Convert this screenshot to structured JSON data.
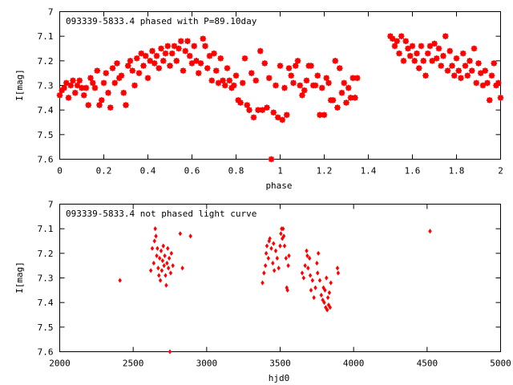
{
  "chart_data": [
    {
      "type": "scatter",
      "title": "093339-5833.4 phased with P=89.10day",
      "xlabel": "phase",
      "ylabel": "I[mag]",
      "xlim": [
        0,
        2
      ],
      "ylim": [
        7,
        7.6
      ],
      "y_inverted": true,
      "x_ticks": [
        0,
        0.2,
        0.4,
        0.6,
        0.8,
        1,
        1.2,
        1.4,
        1.6,
        1.8,
        2
      ],
      "x_tick_labels": [
        "0",
        "0.2",
        "0.4",
        "0.6",
        "0.8",
        "1",
        "1.2",
        "1.4",
        "1.6",
        "1.8",
        "2"
      ],
      "y_ticks": [
        7,
        7.1,
        7.2,
        7.3,
        7.4,
        7.5,
        7.6
      ],
      "y_tick_labels": [
        "7",
        "7.1",
        "7.2",
        "7.3",
        "7.4",
        "7.5",
        "7.6"
      ],
      "marker_color": "#ff0000",
      "grid": false,
      "points": [
        [
          0.0,
          7.34
        ],
        [
          0.01,
          7.32
        ],
        [
          0.02,
          7.31
        ],
        [
          0.03,
          7.29
        ],
        [
          0.04,
          7.35
        ],
        [
          0.05,
          7.3
        ],
        [
          0.06,
          7.28
        ],
        [
          0.07,
          7.33
        ],
        [
          0.08,
          7.3
        ],
        [
          0.09,
          7.28
        ],
        [
          0.1,
          7.31
        ],
        [
          0.11,
          7.34
        ],
        [
          0.12,
          7.31
        ],
        [
          0.13,
          7.38
        ],
        [
          0.14,
          7.27
        ],
        [
          0.15,
          7.29
        ],
        [
          0.16,
          7.31
        ],
        [
          0.17,
          7.24
        ],
        [
          0.18,
          7.38
        ],
        [
          0.19,
          7.36
        ],
        [
          0.2,
          7.29
        ],
        [
          0.21,
          7.25
        ],
        [
          0.22,
          7.33
        ],
        [
          0.23,
          7.39
        ],
        [
          0.24,
          7.23
        ],
        [
          0.25,
          7.29
        ],
        [
          0.26,
          7.21
        ],
        [
          0.27,
          7.27
        ],
        [
          0.28,
          7.26
        ],
        [
          0.29,
          7.33
        ],
        [
          0.3,
          7.38
        ],
        [
          0.31,
          7.22
        ],
        [
          0.32,
          7.2
        ],
        [
          0.33,
          7.24
        ],
        [
          0.34,
          7.3
        ],
        [
          0.35,
          7.19
        ],
        [
          0.36,
          7.25
        ],
        [
          0.37,
          7.17
        ],
        [
          0.38,
          7.22
        ],
        [
          0.39,
          7.18
        ],
        [
          0.4,
          7.27
        ],
        [
          0.41,
          7.2
        ],
        [
          0.42,
          7.16
        ],
        [
          0.43,
          7.21
        ],
        [
          0.44,
          7.18
        ],
        [
          0.45,
          7.23
        ],
        [
          0.46,
          7.15
        ],
        [
          0.47,
          7.2
        ],
        [
          0.48,
          7.17
        ],
        [
          0.49,
          7.14
        ],
        [
          0.5,
          7.22
        ],
        [
          0.51,
          7.17
        ],
        [
          0.52,
          7.14
        ],
        [
          0.53,
          7.2
        ],
        [
          0.54,
          7.15
        ],
        [
          0.55,
          7.12
        ],
        [
          0.56,
          7.24
        ],
        [
          0.57,
          7.16
        ],
        [
          0.58,
          7.12
        ],
        [
          0.59,
          7.18
        ],
        [
          0.6,
          7.21
        ],
        [
          0.61,
          7.14
        ],
        [
          0.62,
          7.2
        ],
        [
          0.63,
          7.25
        ],
        [
          0.64,
          7.21
        ],
        [
          0.65,
          7.11
        ],
        [
          0.66,
          7.14
        ],
        [
          0.67,
          7.23
        ],
        [
          0.68,
          7.18
        ],
        [
          0.69,
          7.28
        ],
        [
          0.7,
          7.17
        ],
        [
          0.71,
          7.24
        ],
        [
          0.72,
          7.29
        ],
        [
          0.73,
          7.19
        ],
        [
          0.74,
          7.28
        ],
        [
          0.75,
          7.3
        ],
        [
          0.76,
          7.23
        ],
        [
          0.77,
          7.28
        ],
        [
          0.78,
          7.31
        ],
        [
          0.79,
          7.3
        ],
        [
          0.8,
          7.26
        ],
        [
          0.81,
          7.36
        ],
        [
          0.82,
          7.37
        ],
        [
          0.83,
          7.29
        ],
        [
          0.84,
          7.19
        ],
        [
          0.85,
          7.38
        ],
        [
          0.86,
          7.4
        ],
        [
          0.87,
          7.25
        ],
        [
          0.88,
          7.43
        ],
        [
          0.89,
          7.28
        ],
        [
          0.9,
          7.4
        ],
        [
          0.91,
          7.16
        ],
        [
          0.92,
          7.4
        ],
        [
          0.93,
          7.21
        ],
        [
          0.94,
          7.39
        ],
        [
          0.95,
          7.27
        ],
        [
          0.96,
          7.6
        ],
        [
          0.97,
          7.41
        ],
        [
          0.98,
          7.3
        ],
        [
          0.99,
          7.43
        ],
        [
          1.0,
          7.22
        ],
        [
          1.01,
          7.44
        ],
        [
          1.02,
          7.31
        ],
        [
          1.03,
          7.42
        ],
        [
          1.04,
          7.23
        ],
        [
          1.05,
          7.26
        ],
        [
          1.06,
          7.29
        ],
        [
          1.07,
          7.22
        ],
        [
          1.08,
          7.2
        ],
        [
          1.09,
          7.3
        ],
        [
          1.1,
          7.34
        ],
        [
          1.11,
          7.32
        ],
        [
          1.12,
          7.28
        ],
        [
          1.13,
          7.22
        ],
        [
          1.14,
          7.22
        ],
        [
          1.15,
          7.3
        ],
        [
          1.16,
          7.3
        ],
        [
          1.17,
          7.26
        ],
        [
          1.18,
          7.42
        ],
        [
          1.19,
          7.31
        ],
        [
          1.2,
          7.42
        ],
        [
          1.21,
          7.27
        ],
        [
          1.22,
          7.29
        ],
        [
          1.23,
          7.36
        ],
        [
          1.24,
          7.36
        ],
        [
          1.25,
          7.2
        ],
        [
          1.26,
          7.39
        ],
        [
          1.27,
          7.23
        ],
        [
          1.28,
          7.33
        ],
        [
          1.29,
          7.29
        ],
        [
          1.3,
          7.37
        ],
        [
          1.31,
          7.31
        ],
        [
          1.32,
          7.35
        ],
        [
          1.33,
          7.27
        ],
        [
          1.34,
          7.35
        ],
        [
          1.35,
          7.27
        ],
        [
          1.5,
          7.1
        ],
        [
          1.51,
          7.11
        ],
        [
          1.52,
          7.14
        ],
        [
          1.53,
          7.12
        ],
        [
          1.54,
          7.17
        ],
        [
          1.55,
          7.1
        ],
        [
          1.56,
          7.2
        ],
        [
          1.57,
          7.12
        ],
        [
          1.58,
          7.15
        ],
        [
          1.59,
          7.18
        ],
        [
          1.6,
          7.14
        ],
        [
          1.61,
          7.2
        ],
        [
          1.62,
          7.17
        ],
        [
          1.63,
          7.23
        ],
        [
          1.64,
          7.14
        ],
        [
          1.65,
          7.2
        ],
        [
          1.66,
          7.26
        ],
        [
          1.67,
          7.17
        ],
        [
          1.68,
          7.14
        ],
        [
          1.69,
          7.2
        ],
        [
          1.7,
          7.13
        ],
        [
          1.71,
          7.19
        ],
        [
          1.72,
          7.15
        ],
        [
          1.73,
          7.22
        ],
        [
          1.74,
          7.18
        ],
        [
          1.75,
          7.1
        ],
        [
          1.76,
          7.24
        ],
        [
          1.77,
          7.16
        ],
        [
          1.78,
          7.22
        ],
        [
          1.79,
          7.26
        ],
        [
          1.8,
          7.19
        ],
        [
          1.81,
          7.24
        ],
        [
          1.82,
          7.27
        ],
        [
          1.83,
          7.17
        ],
        [
          1.84,
          7.22
        ],
        [
          1.85,
          7.26
        ],
        [
          1.86,
          7.2
        ],
        [
          1.87,
          7.24
        ],
        [
          1.88,
          7.15
        ],
        [
          1.89,
          7.29
        ],
        [
          1.9,
          7.21
        ],
        [
          1.91,
          7.25
        ],
        [
          1.92,
          7.3
        ],
        [
          1.93,
          7.24
        ],
        [
          1.94,
          7.29
        ],
        [
          1.95,
          7.36
        ],
        [
          1.96,
          7.26
        ],
        [
          1.97,
          7.21
        ],
        [
          1.98,
          7.3
        ],
        [
          1.99,
          7.29
        ],
        [
          2.0,
          7.35
        ]
      ]
    },
    {
      "type": "scatter",
      "title": "093339-5833.4 not phased light curve",
      "xlabel": "hjd0",
      "ylabel": "I[mag]",
      "xlim": [
        2000,
        5000
      ],
      "ylim": [
        7,
        7.6
      ],
      "y_inverted": true,
      "x_ticks": [
        2000,
        2500,
        3000,
        3500,
        4000,
        4500,
        5000
      ],
      "x_tick_labels": [
        "2000",
        "2500",
        "3000",
        "3500",
        "4000",
        "4500",
        "5000"
      ],
      "y_ticks": [
        7,
        7.1,
        7.2,
        7.3,
        7.4,
        7.5,
        7.6
      ],
      "y_tick_labels": [
        "7",
        "7.1",
        "7.2",
        "7.3",
        "7.4",
        "7.5",
        "7.6"
      ],
      "marker_color": "#ff0000",
      "grid": false,
      "points": [
        [
          2410,
          7.31
        ],
        [
          2620,
          7.27
        ],
        [
          2630,
          7.18
        ],
        [
          2640,
          7.24
        ],
        [
          2645,
          7.15
        ],
        [
          2650,
          7.1
        ],
        [
          2655,
          7.13
        ],
        [
          2660,
          7.21
        ],
        [
          2665,
          7.18
        ],
        [
          2670,
          7.26
        ],
        [
          2675,
          7.29
        ],
        [
          2680,
          7.22
        ],
        [
          2685,
          7.31
        ],
        [
          2690,
          7.19
        ],
        [
          2695,
          7.27
        ],
        [
          2700,
          7.23
        ],
        [
          2705,
          7.17
        ],
        [
          2710,
          7.25
        ],
        [
          2715,
          7.21
        ],
        [
          2720,
          7.29
        ],
        [
          2725,
          7.33
        ],
        [
          2730,
          7.24
        ],
        [
          2735,
          7.18
        ],
        [
          2740,
          7.26
        ],
        [
          2745,
          7.22
        ],
        [
          2750,
          7.6
        ],
        [
          2755,
          7.28
        ],
        [
          2760,
          7.2
        ],
        [
          2770,
          7.25
        ],
        [
          2820,
          7.12
        ],
        [
          2835,
          7.26
        ],
        [
          2890,
          7.13
        ],
        [
          3380,
          7.32
        ],
        [
          3390,
          7.28
        ],
        [
          3400,
          7.25
        ],
        [
          3405,
          7.2
        ],
        [
          3410,
          7.17
        ],
        [
          3420,
          7.22
        ],
        [
          3425,
          7.15
        ],
        [
          3430,
          7.14
        ],
        [
          3440,
          7.18
        ],
        [
          3450,
          7.24
        ],
        [
          3455,
          7.16
        ],
        [
          3460,
          7.27
        ],
        [
          3470,
          7.19
        ],
        [
          3480,
          7.22
        ],
        [
          3490,
          7.26
        ],
        [
          3500,
          7.17
        ],
        [
          3505,
          7.12
        ],
        [
          3510,
          7.1
        ],
        [
          3515,
          7.14
        ],
        [
          3520,
          7.1
        ],
        [
          3525,
          7.13
        ],
        [
          3530,
          7.17
        ],
        [
          3540,
          7.22
        ],
        [
          3545,
          7.34
        ],
        [
          3550,
          7.35
        ],
        [
          3555,
          7.25
        ],
        [
          3560,
          7.21
        ],
        [
          3650,
          7.28
        ],
        [
          3660,
          7.3
        ],
        [
          3670,
          7.25
        ],
        [
          3680,
          7.19
        ],
        [
          3685,
          7.21
        ],
        [
          3690,
          7.26
        ],
        [
          3700,
          7.22
        ],
        [
          3705,
          7.29
        ],
        [
          3710,
          7.35
        ],
        [
          3720,
          7.31
        ],
        [
          3730,
          7.38
        ],
        [
          3740,
          7.34
        ],
        [
          3750,
          7.24
        ],
        [
          3755,
          7.28
        ],
        [
          3760,
          7.2
        ],
        [
          3770,
          7.31
        ],
        [
          3780,
          7.37
        ],
        [
          3790,
          7.39
        ],
        [
          3795,
          7.34
        ],
        [
          3800,
          7.4
        ],
        [
          3805,
          7.35
        ],
        [
          3810,
          7.42
        ],
        [
          3815,
          7.3
        ],
        [
          3820,
          7.43
        ],
        [
          3825,
          7.38
        ],
        [
          3830,
          7.41
        ],
        [
          3835,
          7.36
        ],
        [
          3840,
          7.42
        ],
        [
          3845,
          7.32
        ],
        [
          3890,
          7.26
        ],
        [
          3895,
          7.28
        ],
        [
          4520,
          7.11
        ]
      ]
    }
  ]
}
